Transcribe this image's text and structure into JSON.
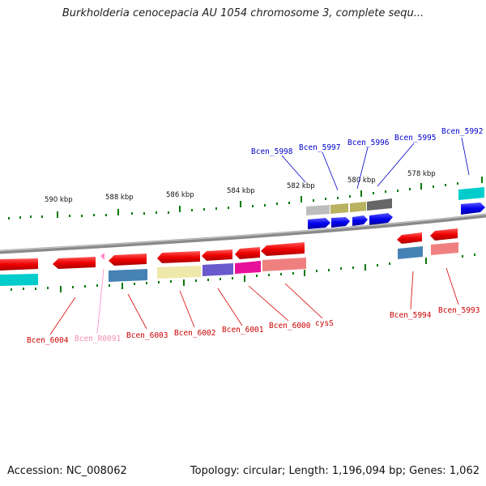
{
  "title": "Burkholderia cenocepacia AU 1054 chromosome 3, complete sequ...",
  "footer": {
    "accession": "Accession: NC_008062",
    "summary": "Topology: circular; Length: 1,196,094 bp; Genes: 1,062"
  },
  "ruler": [
    {
      "label": "590 kbp"
    },
    {
      "label": "588 kbp"
    },
    {
      "label": "586 kbp"
    },
    {
      "label": "584 kbp"
    },
    {
      "label": "582 kbp"
    },
    {
      "label": "580 kbp"
    },
    {
      "label": "578 kbp"
    }
  ],
  "top_gene_labels": [
    {
      "name": "Bcen_5998"
    },
    {
      "name": "Bcen_5997"
    },
    {
      "name": "Bcen_5996"
    },
    {
      "name": "Bcen_5995"
    },
    {
      "name": "Bcen_5992"
    }
  ],
  "bottom_gene_labels": [
    {
      "name": "Bcen_6004"
    },
    {
      "name": "Bcen_R0091"
    },
    {
      "name": "Bcen_6003"
    },
    {
      "name": "Bcen_6002"
    },
    {
      "name": "Bcen_6001"
    },
    {
      "name": "Bcen_6000"
    },
    {
      "name": "cysS"
    },
    {
      "name": "Bcen_5994"
    },
    {
      "name": "Bcen_5993"
    }
  ],
  "colors": {
    "forward_gene": "#0000ee",
    "reverse_gene": "#ee0000",
    "trna_gene": "#ff88cc",
    "backbone": "#8a8a8a",
    "tick": "#0a7a0a"
  }
}
